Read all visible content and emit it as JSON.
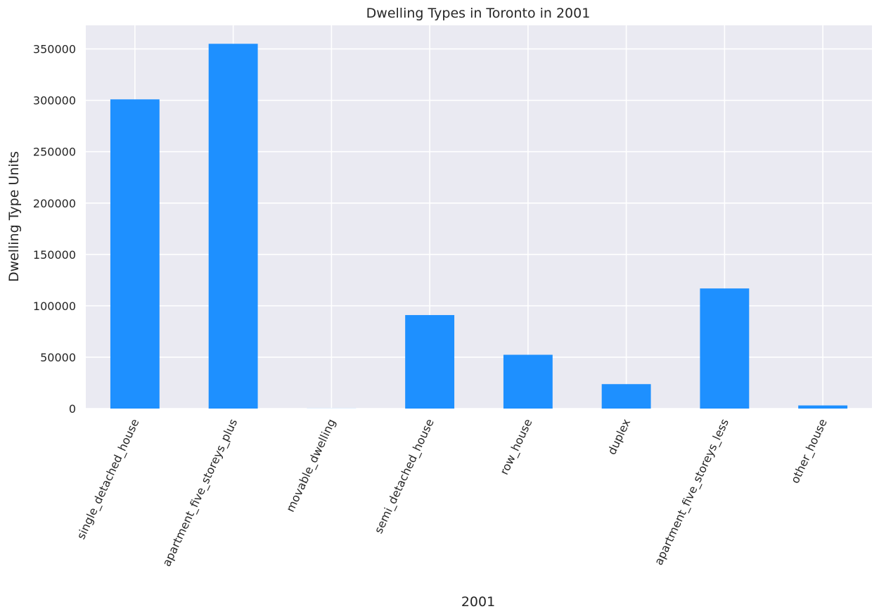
{
  "chart_data": {
    "type": "bar",
    "title": "Dwelling Types in Toronto in 2001",
    "xlabel": "2001",
    "ylabel": "Dwelling Type Units",
    "categories": [
      "single_detached_house",
      "apartment_five_storeys_plus",
      "movable_dwelling",
      "semi_detached_house",
      "row_house",
      "duplex",
      "apartment_five_storeys_less",
      "other_house"
    ],
    "values": [
      300930,
      355015,
      75,
      90995,
      52355,
      23785,
      116900,
      3040
    ],
    "ylim": [
      0,
      373000
    ],
    "yticks": [
      0,
      50000,
      100000,
      150000,
      200000,
      250000,
      300000,
      350000
    ],
    "ytick_labels": [
      "0",
      "50000",
      "100000",
      "150000",
      "200000",
      "250000",
      "300000",
      "350000"
    ],
    "grid": true,
    "bar_color": "#1E90FF",
    "background_color": "#EAEAF2"
  }
}
